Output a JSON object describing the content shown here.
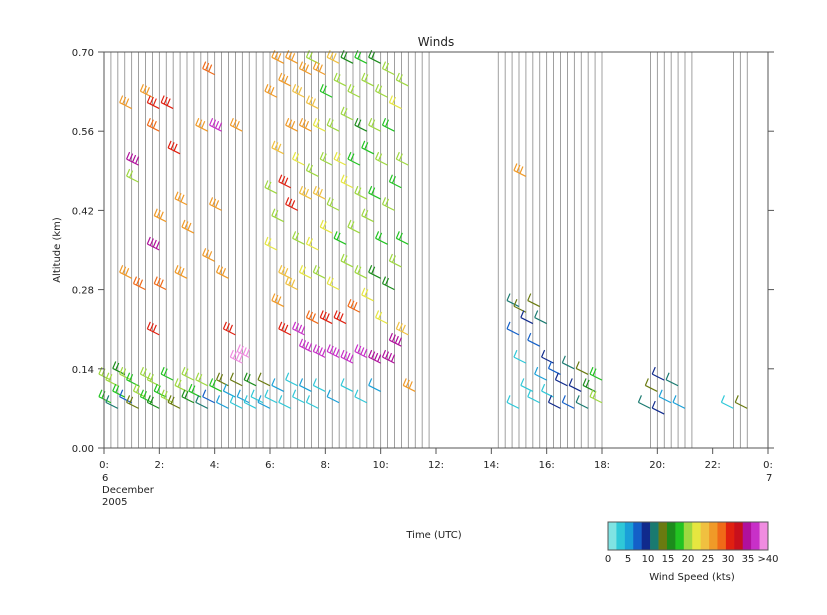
{
  "chart_data": {
    "type": "wind-barb-time-height",
    "title": "Winds",
    "xlabel": "Time (UTC)",
    "ylabel": "Altitude (km)",
    "xlim": [
      0,
      24
    ],
    "ylim": [
      0.0,
      0.7
    ],
    "x_ticks": [
      {
        "v": 0,
        "label": "0:"
      },
      {
        "v": 2,
        "label": "2:"
      },
      {
        "v": 4,
        "label": "4:"
      },
      {
        "v": 6,
        "label": "6:"
      },
      {
        "v": 8,
        "label": "8:"
      },
      {
        "v": 10,
        "label": "10:"
      },
      {
        "v": 12,
        "label": "12:"
      },
      {
        "v": 14,
        "label": "14:"
      },
      {
        "v": 16,
        "label": "16:"
      },
      {
        "v": 18,
        "label": "18:"
      },
      {
        "v": 20,
        "label": "20:"
      },
      {
        "v": 22,
        "label": "22:"
      },
      {
        "v": 24,
        "label": "0:"
      }
    ],
    "date_labels": [
      {
        "v": 0,
        "lines": [
          "6",
          "December",
          "2005"
        ]
      },
      {
        "v": 24,
        "lines": [
          "7"
        ]
      }
    ],
    "y_ticks": [
      {
        "v": 0.0,
        "label": "0.00"
      },
      {
        "v": 0.14,
        "label": "0.14"
      },
      {
        "v": 0.28,
        "label": "0.28"
      },
      {
        "v": 0.42,
        "label": "0.42"
      },
      {
        "v": 0.56,
        "label": "0.56"
      },
      {
        "v": 0.7,
        "label": "0.70"
      }
    ],
    "profile_times": [
      0.25,
      0.5,
      0.75,
      1.0,
      1.25,
      1.5,
      1.75,
      2.0,
      2.25,
      2.5,
      2.75,
      3.0,
      3.25,
      3.5,
      3.75,
      4.0,
      4.25,
      4.5,
      4.75,
      5.0,
      5.25,
      5.5,
      5.75,
      6.0,
      6.25,
      6.5,
      6.75,
      7.0,
      7.25,
      7.5,
      7.75,
      8.0,
      8.25,
      8.5,
      8.75,
      9.0,
      9.25,
      9.5,
      9.75,
      10.0,
      10.25,
      10.5,
      10.75,
      11.0,
      11.25,
      11.5,
      11.75,
      14.25,
      14.5,
      14.75,
      15.0,
      15.25,
      15.5,
      15.75,
      16.0,
      16.25,
      16.5,
      16.75,
      17.0,
      17.25,
      17.5,
      17.75,
      18.0,
      19.75,
      20.0,
      20.25,
      20.5,
      20.75,
      21.0,
      21.25,
      22.75,
      23.0,
      23.25
    ],
    "colorbar": {
      "label": "Wind Speed (kts)",
      "colors": [
        "#7fe3e3",
        "#2fc8d8",
        "#1aa0d8",
        "#1460c8",
        "#102a8c",
        "#1a7a70",
        "#6a7a10",
        "#1c8c1c",
        "#22c322",
        "#9ed840",
        "#e6e640",
        "#f0c040",
        "#f09a28",
        "#f06a18",
        "#e02010",
        "#c8101c",
        "#b0109c",
        "#c830c8",
        "#f08ce0"
      ],
      "tick_labels": [
        "0",
        "5",
        "10",
        "15",
        "20",
        "25",
        "30",
        "35",
        ">40"
      ]
    },
    "barbs": [
      {
        "t": 0.25,
        "alt": 0.08,
        "spd": 18
      },
      {
        "t": 0.25,
        "alt": 0.12,
        "spd": 22
      },
      {
        "t": 0.5,
        "alt": 0.07,
        "spd": 12
      },
      {
        "t": 0.5,
        "alt": 0.11,
        "spd": 20
      },
      {
        "t": 0.75,
        "alt": 0.09,
        "spd": 18
      },
      {
        "t": 0.75,
        "alt": 0.13,
        "spd": 16
      },
      {
        "t": 1.0,
        "alt": 0.08,
        "spd": 8
      },
      {
        "t": 1.0,
        "alt": 0.12,
        "spd": 20
      },
      {
        "t": 1.25,
        "alt": 0.07,
        "spd": 15
      },
      {
        "t": 1.25,
        "alt": 0.11,
        "spd": 18
      },
      {
        "t": 1.5,
        "alt": 0.09,
        "spd": 20
      },
      {
        "t": 1.75,
        "alt": 0.08,
        "spd": 18
      },
      {
        "t": 1.75,
        "alt": 0.12,
        "spd": 22
      },
      {
        "t": 2.0,
        "alt": 0.07,
        "spd": 16
      },
      {
        "t": 2.0,
        "alt": 0.11,
        "spd": 20
      },
      {
        "t": 2.25,
        "alt": 0.09,
        "spd": 18
      },
      {
        "t": 2.5,
        "alt": 0.08,
        "spd": 20
      },
      {
        "t": 2.5,
        "alt": 0.12,
        "spd": 18
      },
      {
        "t": 2.75,
        "alt": 0.07,
        "spd": 15
      },
      {
        "t": 3.0,
        "alt": 0.1,
        "spd": 20
      },
      {
        "t": 3.25,
        "alt": 0.08,
        "spd": 16
      },
      {
        "t": 3.25,
        "alt": 0.12,
        "spd": 20
      },
      {
        "t": 3.5,
        "alt": 0.09,
        "spd": 18
      },
      {
        "t": 3.75,
        "alt": 0.07,
        "spd": 12
      },
      {
        "t": 3.75,
        "alt": 0.11,
        "spd": 20
      },
      {
        "t": 4.0,
        "alt": 0.08,
        "spd": 8
      },
      {
        "t": 4.25,
        "alt": 0.1,
        "spd": 18
      },
      {
        "t": 4.5,
        "alt": 0.07,
        "spd": 6
      },
      {
        "t": 4.5,
        "alt": 0.11,
        "spd": 15
      },
      {
        "t": 4.75,
        "alt": 0.09,
        "spd": 5
      },
      {
        "t": 5.0,
        "alt": 0.07,
        "spd": 4
      },
      {
        "t": 5.0,
        "alt": 0.11,
        "spd": 14
      },
      {
        "t": 5.25,
        "alt": 0.08,
        "spd": 5
      },
      {
        "t": 5.5,
        "alt": 0.07,
        "spd": 3
      },
      {
        "t": 5.5,
        "alt": 0.11,
        "spd": 16
      },
      {
        "t": 5.75,
        "alt": 0.08,
        "spd": 4
      },
      {
        "t": 6.0,
        "alt": 0.07,
        "spd": 5
      },
      {
        "t": 6.0,
        "alt": 0.11,
        "spd": 14
      },
      {
        "t": 6.25,
        "alt": 0.08,
        "spd": 3
      },
      {
        "t": 6.5,
        "alt": 0.1,
        "spd": 5
      },
      {
        "t": 6.75,
        "alt": 0.07,
        "spd": 4
      },
      {
        "t": 7.0,
        "alt": 0.11,
        "spd": 4
      },
      {
        "t": 7.25,
        "alt": 0.08,
        "spd": 3
      },
      {
        "t": 7.5,
        "alt": 0.1,
        "spd": 5
      },
      {
        "t": 7.75,
        "alt": 0.07,
        "spd": 4
      },
      {
        "t": 8.0,
        "alt": 0.1,
        "spd": 3
      },
      {
        "t": 8.5,
        "alt": 0.08,
        "spd": 5
      },
      {
        "t": 9.0,
        "alt": 0.1,
        "spd": 4
      },
      {
        "t": 9.5,
        "alt": 0.08,
        "spd": 4
      },
      {
        "t": 10.0,
        "alt": 0.1,
        "spd": 6
      },
      {
        "t": 1.0,
        "alt": 0.6,
        "spd": 27
      },
      {
        "t": 1.0,
        "alt": 0.3,
        "spd": 28
      },
      {
        "t": 1.25,
        "alt": 0.5,
        "spd": 36
      },
      {
        "t": 1.25,
        "alt": 0.47,
        "spd": 22
      },
      {
        "t": 1.5,
        "alt": 0.28,
        "spd": 29
      },
      {
        "t": 1.75,
        "alt": 0.62,
        "spd": 28
      },
      {
        "t": 2.0,
        "alt": 0.6,
        "spd": 33
      },
      {
        "t": 2.0,
        "alt": 0.56,
        "spd": 30
      },
      {
        "t": 2.0,
        "alt": 0.35,
        "spd": 36
      },
      {
        "t": 2.0,
        "alt": 0.2,
        "spd": 33
      },
      {
        "t": 2.25,
        "alt": 0.4,
        "spd": 28
      },
      {
        "t": 2.25,
        "alt": 0.28,
        "spd": 29
      },
      {
        "t": 2.5,
        "alt": 0.6,
        "spd": 33
      },
      {
        "t": 2.75,
        "alt": 0.52,
        "spd": 33
      },
      {
        "t": 3.0,
        "alt": 0.43,
        "spd": 28
      },
      {
        "t": 3.0,
        "alt": 0.3,
        "spd": 28
      },
      {
        "t": 3.25,
        "alt": 0.38,
        "spd": 28
      },
      {
        "t": 3.75,
        "alt": 0.56,
        "spd": 28
      },
      {
        "t": 4.0,
        "alt": 0.66,
        "spd": 30
      },
      {
        "t": 4.0,
        "alt": 0.33,
        "spd": 28
      },
      {
        "t": 4.25,
        "alt": 0.42,
        "spd": 28
      },
      {
        "t": 4.25,
        "alt": 0.56,
        "spd": 38
      },
      {
        "t": 4.5,
        "alt": 0.3,
        "spd": 28
      },
      {
        "t": 4.75,
        "alt": 0.2,
        "spd": 33
      },
      {
        "t": 5.0,
        "alt": 0.56,
        "spd": 28
      },
      {
        "t": 5.0,
        "alt": 0.15,
        "spd": 40
      },
      {
        "t": 5.25,
        "alt": 0.16,
        "spd": 42
      },
      {
        "t": 6.25,
        "alt": 0.62,
        "spd": 27
      },
      {
        "t": 6.25,
        "alt": 0.45,
        "spd": 20
      },
      {
        "t": 6.25,
        "alt": 0.35,
        "spd": 24
      },
      {
        "t": 6.5,
        "alt": 0.68,
        "spd": 28
      },
      {
        "t": 6.5,
        "alt": 0.52,
        "spd": 26
      },
      {
        "t": 6.5,
        "alt": 0.4,
        "spd": 22
      },
      {
        "t": 6.5,
        "alt": 0.25,
        "spd": 28
      },
      {
        "t": 6.75,
        "alt": 0.64,
        "spd": 28
      },
      {
        "t": 6.75,
        "alt": 0.46,
        "spd": 32
      },
      {
        "t": 6.75,
        "alt": 0.3,
        "spd": 26
      },
      {
        "t": 6.75,
        "alt": 0.2,
        "spd": 33
      },
      {
        "t": 7.0,
        "alt": 0.68,
        "spd": 28
      },
      {
        "t": 7.0,
        "alt": 0.56,
        "spd": 28
      },
      {
        "t": 7.0,
        "alt": 0.42,
        "spd": 33
      },
      {
        "t": 7.0,
        "alt": 0.28,
        "spd": 26
      },
      {
        "t": 7.25,
        "alt": 0.62,
        "spd": 26
      },
      {
        "t": 7.25,
        "alt": 0.5,
        "spd": 24
      },
      {
        "t": 7.25,
        "alt": 0.36,
        "spd": 22
      },
      {
        "t": 7.25,
        "alt": 0.2,
        "spd": 38
      },
      {
        "t": 7.5,
        "alt": 0.66,
        "spd": 27
      },
      {
        "t": 7.5,
        "alt": 0.56,
        "spd": 28
      },
      {
        "t": 7.5,
        "alt": 0.44,
        "spd": 26
      },
      {
        "t": 7.5,
        "alt": 0.3,
        "spd": 24
      },
      {
        "t": 7.5,
        "alt": 0.17,
        "spd": 38
      },
      {
        "t": 7.75,
        "alt": 0.68,
        "spd": 20
      },
      {
        "t": 7.75,
        "alt": 0.6,
        "spd": 26
      },
      {
        "t": 7.75,
        "alt": 0.48,
        "spd": 22
      },
      {
        "t": 7.75,
        "alt": 0.35,
        "spd": 24
      },
      {
        "t": 7.75,
        "alt": 0.22,
        "spd": 30
      },
      {
        "t": 8.0,
        "alt": 0.66,
        "spd": 28
      },
      {
        "t": 8.0,
        "alt": 0.56,
        "spd": 24
      },
      {
        "t": 8.0,
        "alt": 0.44,
        "spd": 26
      },
      {
        "t": 8.0,
        "alt": 0.3,
        "spd": 22
      },
      {
        "t": 8.0,
        "alt": 0.16,
        "spd": 38
      },
      {
        "t": 8.25,
        "alt": 0.62,
        "spd": 18
      },
      {
        "t": 8.25,
        "alt": 0.5,
        "spd": 20
      },
      {
        "t": 8.25,
        "alt": 0.38,
        "spd": 24
      },
      {
        "t": 8.25,
        "alt": 0.22,
        "spd": 33
      },
      {
        "t": 8.5,
        "alt": 0.68,
        "spd": 26
      },
      {
        "t": 8.5,
        "alt": 0.56,
        "spd": 22
      },
      {
        "t": 8.5,
        "alt": 0.42,
        "spd": 20
      },
      {
        "t": 8.5,
        "alt": 0.28,
        "spd": 24
      },
      {
        "t": 8.5,
        "alt": 0.16,
        "spd": 38
      },
      {
        "t": 8.75,
        "alt": 0.64,
        "spd": 20
      },
      {
        "t": 8.75,
        "alt": 0.5,
        "spd": 24
      },
      {
        "t": 8.75,
        "alt": 0.36,
        "spd": 18
      },
      {
        "t": 8.75,
        "alt": 0.22,
        "spd": 33
      },
      {
        "t": 9.0,
        "alt": 0.68,
        "spd": 16
      },
      {
        "t": 9.0,
        "alt": 0.58,
        "spd": 22
      },
      {
        "t": 9.0,
        "alt": 0.46,
        "spd": 24
      },
      {
        "t": 9.0,
        "alt": 0.32,
        "spd": 20
      },
      {
        "t": 9.0,
        "alt": 0.15,
        "spd": 38
      },
      {
        "t": 9.25,
        "alt": 0.62,
        "spd": 20
      },
      {
        "t": 9.25,
        "alt": 0.5,
        "spd": 18
      },
      {
        "t": 9.25,
        "alt": 0.38,
        "spd": 22
      },
      {
        "t": 9.25,
        "alt": 0.24,
        "spd": 30
      },
      {
        "t": 9.5,
        "alt": 0.68,
        "spd": 18
      },
      {
        "t": 9.5,
        "alt": 0.56,
        "spd": 16
      },
      {
        "t": 9.5,
        "alt": 0.44,
        "spd": 22
      },
      {
        "t": 9.5,
        "alt": 0.3,
        "spd": 20
      },
      {
        "t": 9.5,
        "alt": 0.16,
        "spd": 38
      },
      {
        "t": 9.75,
        "alt": 0.64,
        "spd": 22
      },
      {
        "t": 9.75,
        "alt": 0.52,
        "spd": 18
      },
      {
        "t": 9.75,
        "alt": 0.4,
        "spd": 20
      },
      {
        "t": 9.75,
        "alt": 0.26,
        "spd": 24
      },
      {
        "t": 10.0,
        "alt": 0.68,
        "spd": 16
      },
      {
        "t": 10.0,
        "alt": 0.56,
        "spd": 20
      },
      {
        "t": 10.0,
        "alt": 0.44,
        "spd": 18
      },
      {
        "t": 10.0,
        "alt": 0.3,
        "spd": 16
      },
      {
        "t": 10.0,
        "alt": 0.15,
        "spd": 36
      },
      {
        "t": 10.25,
        "alt": 0.62,
        "spd": 20
      },
      {
        "t": 10.25,
        "alt": 0.5,
        "spd": 22
      },
      {
        "t": 10.25,
        "alt": 0.36,
        "spd": 18
      },
      {
        "t": 10.25,
        "alt": 0.22,
        "spd": 24
      },
      {
        "t": 10.5,
        "alt": 0.66,
        "spd": 22
      },
      {
        "t": 10.5,
        "alt": 0.56,
        "spd": 18
      },
      {
        "t": 10.5,
        "alt": 0.42,
        "spd": 20
      },
      {
        "t": 10.5,
        "alt": 0.28,
        "spd": 16
      },
      {
        "t": 10.5,
        "alt": 0.15,
        "spd": 36
      },
      {
        "t": 10.75,
        "alt": 0.6,
        "spd": 24
      },
      {
        "t": 10.75,
        "alt": 0.46,
        "spd": 18
      },
      {
        "t": 10.75,
        "alt": 0.32,
        "spd": 22
      },
      {
        "t": 10.75,
        "alt": 0.18,
        "spd": 36
      },
      {
        "t": 11.0,
        "alt": 0.64,
        "spd": 20
      },
      {
        "t": 11.0,
        "alt": 0.5,
        "spd": 22
      },
      {
        "t": 11.0,
        "alt": 0.36,
        "spd": 18
      },
      {
        "t": 11.0,
        "alt": 0.2,
        "spd": 26
      },
      {
        "t": 11.25,
        "alt": 0.1,
        "spd": 27
      },
      {
        "t": 15.0,
        "alt": 0.25,
        "spd": 12
      },
      {
        "t": 15.0,
        "alt": 0.2,
        "spd": 8
      },
      {
        "t": 15.0,
        "alt": 0.07,
        "spd": 4
      },
      {
        "t": 15.25,
        "alt": 0.48,
        "spd": 28
      },
      {
        "t": 15.25,
        "alt": 0.24,
        "spd": 14
      },
      {
        "t": 15.25,
        "alt": 0.15,
        "spd": 4
      },
      {
        "t": 15.5,
        "alt": 0.22,
        "spd": 10
      },
      {
        "t": 15.5,
        "alt": 0.1,
        "spd": 4
      },
      {
        "t": 15.75,
        "alt": 0.25,
        "spd": 14
      },
      {
        "t": 15.75,
        "alt": 0.18,
        "spd": 8
      },
      {
        "t": 15.75,
        "alt": 0.08,
        "spd": 3
      },
      {
        "t": 16.0,
        "alt": 0.22,
        "spd": 12
      },
      {
        "t": 16.0,
        "alt": 0.12,
        "spd": 6
      },
      {
        "t": 16.25,
        "alt": 0.15,
        "spd": 10
      },
      {
        "t": 16.25,
        "alt": 0.09,
        "spd": 4
      },
      {
        "t": 16.5,
        "alt": 0.13,
        "spd": 8
      },
      {
        "t": 16.5,
        "alt": 0.07,
        "spd": 10
      },
      {
        "t": 16.75,
        "alt": 0.11,
        "spd": 10
      },
      {
        "t": 17.0,
        "alt": 0.14,
        "spd": 12
      },
      {
        "t": 17.0,
        "alt": 0.07,
        "spd": 8
      },
      {
        "t": 17.25,
        "alt": 0.1,
        "spd": 10
      },
      {
        "t": 17.5,
        "alt": 0.13,
        "spd": 14
      },
      {
        "t": 17.5,
        "alt": 0.07,
        "spd": 12
      },
      {
        "t": 17.75,
        "alt": 0.1,
        "spd": 16
      },
      {
        "t": 18.0,
        "alt": 0.12,
        "spd": 18
      },
      {
        "t": 18.0,
        "alt": 0.08,
        "spd": 20
      },
      {
        "t": 19.75,
        "alt": 0.07,
        "spd": 12
      },
      {
        "t": 20.0,
        "alt": 0.1,
        "spd": 14
      },
      {
        "t": 20.25,
        "alt": 0.06,
        "spd": 10
      },
      {
        "t": 20.25,
        "alt": 0.12,
        "spd": 10
      },
      {
        "t": 20.5,
        "alt": 0.08,
        "spd": 6
      },
      {
        "t": 20.75,
        "alt": 0.11,
        "spd": 12
      },
      {
        "t": 21.0,
        "alt": 0.07,
        "spd": 6
      },
      {
        "t": 22.75,
        "alt": 0.07,
        "spd": 3
      },
      {
        "t": 23.25,
        "alt": 0.07,
        "spd": 14
      }
    ]
  }
}
